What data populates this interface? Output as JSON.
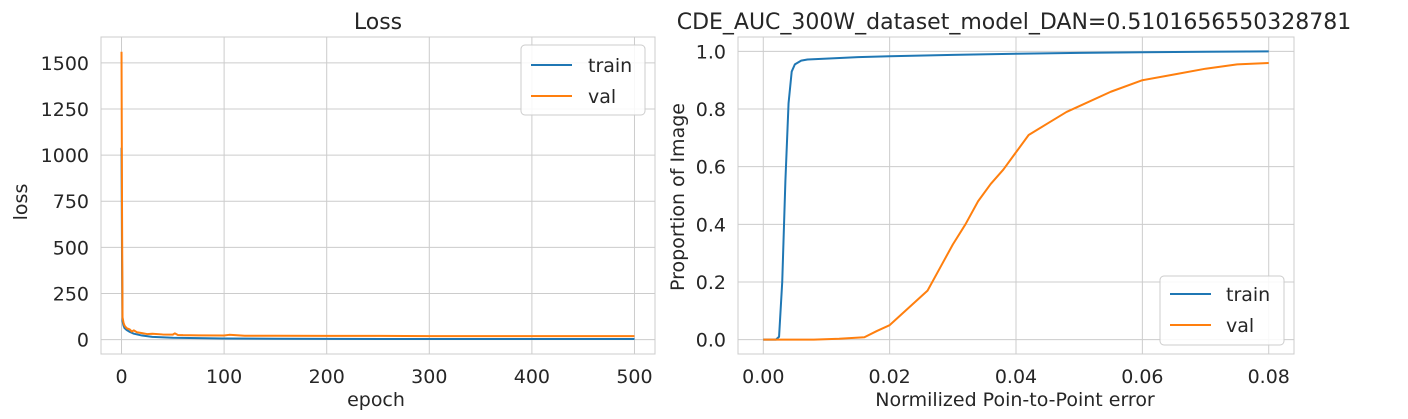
{
  "chart_data": [
    {
      "type": "line",
      "title": "Loss",
      "xlabel": "epoch",
      "ylabel": "loss",
      "xlim": [
        -20,
        520
      ],
      "ylim": [
        -78,
        1640
      ],
      "xticks": [
        0,
        100,
        200,
        300,
        400,
        500
      ],
      "xtick_labels": [
        "0",
        "100",
        "200",
        "300",
        "400",
        "500"
      ],
      "yticks": [
        0,
        250,
        500,
        750,
        1000,
        1250,
        1500
      ],
      "ytick_labels": [
        "0",
        "250",
        "500",
        "750",
        "1000",
        "1250",
        "1500"
      ],
      "grid": true,
      "legend_position": "top-right",
      "series": [
        {
          "name": "train",
          "color": "#1f77b4",
          "x": [
            0,
            0.5,
            1,
            2,
            3,
            5,
            8,
            12,
            20,
            30,
            50,
            75,
            100,
            150,
            200,
            300,
            400,
            500
          ],
          "y": [
            1040,
            430,
            100,
            75,
            62,
            52,
            42,
            32,
            22,
            15,
            10,
            8,
            6,
            5,
            4,
            3,
            3,
            3
          ]
        },
        {
          "name": "val",
          "color": "#ff7f0e",
          "x": [
            0,
            0.5,
            1,
            2,
            3,
            5,
            8,
            10,
            12,
            15,
            20,
            25,
            30,
            40,
            50,
            52,
            55,
            60,
            75,
            100,
            105,
            120,
            150,
            200,
            250,
            300,
            400,
            500
          ],
          "y": [
            1560,
            700,
            120,
            90,
            75,
            62,
            55,
            44,
            50,
            40,
            35,
            30,
            32,
            28,
            27,
            34,
            25,
            24,
            23,
            22,
            26,
            21,
            21,
            20,
            20,
            19,
            19,
            19
          ]
        }
      ]
    },
    {
      "type": "line",
      "title": "CDE_AUC_300W_dataset_model_DAN=0.5101656550328781",
      "xlabel": "Normilized Poin-to-Point error",
      "ylabel": "Proportion of Image",
      "xlim": [
        -0.004,
        0.084
      ],
      "ylim": [
        -0.05,
        1.05
      ],
      "xticks": [
        0,
        0.02,
        0.04,
        0.06,
        0.08
      ],
      "xtick_labels": [
        "0.00",
        "0.02",
        "0.04",
        "0.06",
        "0.08"
      ],
      "yticks": [
        0,
        0.2,
        0.4,
        0.6,
        0.8,
        1.0
      ],
      "ytick_labels": [
        "0.0",
        "0.2",
        "0.4",
        "0.6",
        "0.8",
        "1.0"
      ],
      "grid": true,
      "legend_position": "bottom-right",
      "series": [
        {
          "name": "train",
          "color": "#1f77b4",
          "x": [
            0,
            0.002,
            0.0025,
            0.003,
            0.0035,
            0.004,
            0.0045,
            0.005,
            0.006,
            0.007,
            0.01,
            0.015,
            0.02,
            0.03,
            0.04,
            0.05,
            0.06,
            0.07,
            0.08
          ],
          "y": [
            0,
            0,
            0.01,
            0.2,
            0.55,
            0.82,
            0.93,
            0.955,
            0.968,
            0.972,
            0.975,
            0.98,
            0.983,
            0.988,
            0.992,
            0.995,
            0.997,
            0.999,
            1.0
          ]
        },
        {
          "name": "val",
          "color": "#ff7f0e",
          "x": [
            0,
            0.008,
            0.012,
            0.016,
            0.018,
            0.02,
            0.022,
            0.024,
            0.026,
            0.028,
            0.03,
            0.032,
            0.034,
            0.036,
            0.038,
            0.04,
            0.042,
            0.045,
            0.048,
            0.05,
            0.055,
            0.06,
            0.065,
            0.07,
            0.075,
            0.08
          ],
          "y": [
            0,
            0,
            0.003,
            0.008,
            0.03,
            0.05,
            0.09,
            0.13,
            0.17,
            0.25,
            0.33,
            0.4,
            0.48,
            0.54,
            0.59,
            0.65,
            0.71,
            0.75,
            0.79,
            0.81,
            0.86,
            0.9,
            0.92,
            0.94,
            0.955,
            0.96
          ]
        }
      ]
    }
  ]
}
